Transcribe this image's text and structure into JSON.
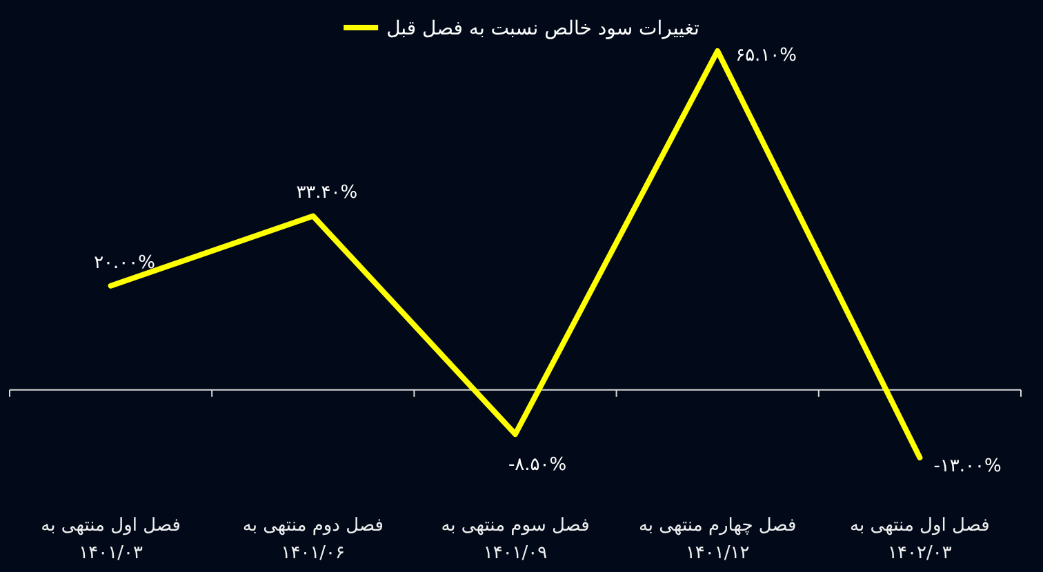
{
  "chart_data": {
    "type": "line",
    "categories": [
      "فصل اول منتهی به\n۱۴۰۱/۰۳",
      "فصل دوم منتهی به\n۱۴۰۱/۰۶",
      "فصل سوم منتهی به\n۱۴۰۱/۰۹",
      "فصل چهارم منتهی به\n۱۴۰۱/۱۲",
      "فصل اول منتهی به\n۱۴۰۲/۰۳"
    ],
    "series": [
      {
        "name": "تغییرات سود خالص نسبت به فصل قبل",
        "color": "#ffff00",
        "values": [
          20.0,
          33.4,
          -8.5,
          65.1,
          -13.0
        ],
        "value_labels": [
          "۲۰.۰۰%",
          "۳۳.۴۰%",
          "-۸.۵۰%",
          "۶۵.۱۰%",
          "-۱۳.۰۰%"
        ]
      }
    ],
    "legend": "top"
  }
}
